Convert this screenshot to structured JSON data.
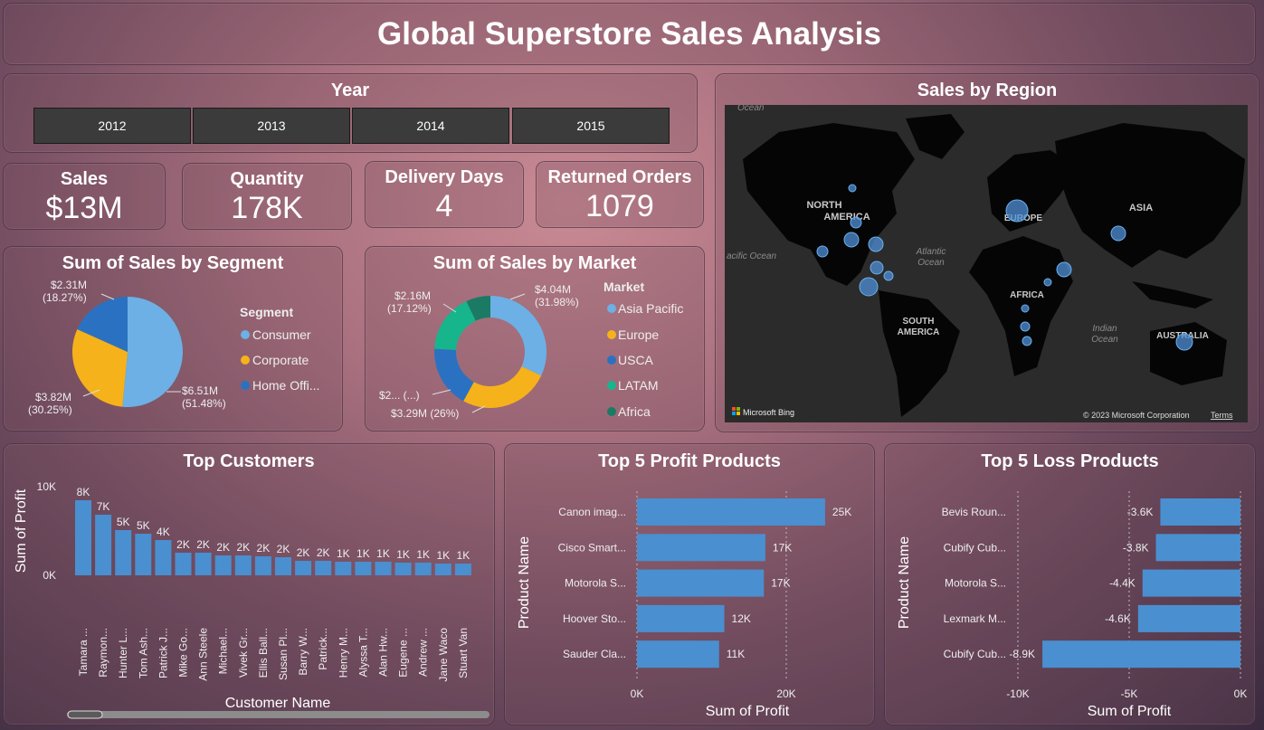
{
  "title": "Global Superstore Sales Analysis",
  "year_filter": {
    "label": "Year",
    "options": [
      "2012",
      "2013",
      "2014",
      "2015"
    ]
  },
  "kpis": [
    {
      "label": "Sales",
      "value": "$13M"
    },
    {
      "label": "Quantity",
      "value": "178K"
    },
    {
      "label": "Delivery Days",
      "value": "4"
    },
    {
      "label": "Returned Orders",
      "value": "1079"
    }
  ],
  "colors": {
    "blue_light": "#6cb0e6",
    "gold": "#f6b21a",
    "blue_dark": "#2a72c1",
    "teal": "#17b58c",
    "green_dark": "#1b7a64",
    "bar": "#4a8fd0"
  },
  "segment": {
    "title": "Sum of Sales by Segment",
    "legend_title": "Segment",
    "legend": [
      "Consumer",
      "Corporate",
      "Home Offi..."
    ],
    "labels": [
      {
        "value": "$6.51M",
        "pct": "(51.48%)"
      },
      {
        "value": "$3.82M",
        "pct": "(30.25%)"
      },
      {
        "value": "$2.31M",
        "pct": "(18.27%)"
      }
    ]
  },
  "market": {
    "title": "Sum of Sales by Market",
    "legend_title": "Market",
    "legend": [
      "Asia Pacific",
      "Europe",
      "USCA",
      "LATAM",
      "Africa"
    ],
    "labels": [
      {
        "value": "$4.04M",
        "pct": "(31.98%)"
      },
      {
        "text": "$3.29M (26%)"
      },
      {
        "text": "$2... (...)"
      },
      {
        "value": "$2.16M",
        "pct": "(17.12%)"
      }
    ]
  },
  "map": {
    "title": "Sales by Region",
    "labels": {
      "north_america": "NORTH\nAMERICA",
      "europe": "EUROPE",
      "asia": "ASIA",
      "africa": "AFRICA",
      "south_america": "SOUTH\nAMERICA",
      "australia": "AUSTRALIA",
      "atlantic": "Atlantic\nOcean",
      "indian": "Indian\nOcean",
      "pacific": "acific Ocean",
      "ocean_top": "Ocean"
    },
    "attribution": "Microsoft Bing",
    "copyright": "© 2023 Microsoft Corporation",
    "terms": "Terms"
  },
  "chart_data": [
    {
      "type": "pie",
      "title": "Sum of Sales by Segment",
      "categories": [
        "Consumer",
        "Corporate",
        "Home Office"
      ],
      "values": [
        6.51,
        3.82,
        2.31
      ],
      "percent": [
        51.48,
        30.25,
        18.27
      ],
      "unit": "$M"
    },
    {
      "type": "pie",
      "title": "Sum of Sales by Market",
      "donut": true,
      "categories": [
        "Asia Pacific",
        "Europe",
        "USCA",
        "LATAM",
        "Africa"
      ],
      "values": [
        4.04,
        3.29,
        2.26,
        2.16,
        0.89
      ],
      "percent": [
        31.98,
        26,
        17.9,
        17.12,
        7.0
      ],
      "unit": "$M"
    },
    {
      "type": "bar",
      "title": "Top Customers",
      "xlabel": "Customer Name",
      "ylabel": "Sum of Profit",
      "ylim": [
        0,
        10000
      ],
      "yticks": [
        "10K",
        "0K"
      ],
      "categories": [
        "Tamara ...",
        "Raymon...",
        "Hunter L...",
        "Tom Ash...",
        "Patrick J...",
        "Mike Go...",
        "Ann Steele",
        "Michael...",
        "Vivek Gr...",
        "Ellis Ball...",
        "Susan Pl...",
        "Barry W...",
        "Patrick...",
        "Henry M...",
        "Alyssa T...",
        "Alan Hw...",
        "Eugene ...",
        "Andrew ...",
        "Jane Waco",
        "Stuart Van"
      ],
      "values": [
        8300,
        6700,
        5000,
        4600,
        3900,
        2500,
        2500,
        2200,
        2200,
        2100,
        2000,
        1600,
        1600,
        1500,
        1500,
        1500,
        1400,
        1400,
        1300,
        1300
      ],
      "data_labels": [
        "8K",
        "7K",
        "5K",
        "5K",
        "4K",
        "2K",
        "2K",
        "2K",
        "2K",
        "2K",
        "2K",
        "2K",
        "2K",
        "1K",
        "1K",
        "1K",
        "1K",
        "1K",
        "1K",
        "1K"
      ]
    },
    {
      "type": "bar",
      "orientation": "horizontal",
      "title": "Top 5 Profit Products",
      "xlabel": "Sum of Profit",
      "ylabel": "Product Name",
      "xlim": [
        0,
        25000
      ],
      "xticks": [
        "0K",
        "20K"
      ],
      "categories": [
        "Canon imag...",
        "Cisco Smart...",
        "Motorola S...",
        "Hoover Sto...",
        "Sauder Cla..."
      ],
      "values": [
        25200,
        17200,
        17000,
        11700,
        11000
      ],
      "data_labels": [
        "25K",
        "17K",
        "17K",
        "12K",
        "11K"
      ]
    },
    {
      "type": "bar",
      "orientation": "horizontal",
      "title": "Top 5 Loss Products",
      "xlabel": "Sum of Profit",
      "ylabel": "Product Name",
      "xlim": [
        -10000,
        0
      ],
      "xticks": [
        "-10K",
        "-5K",
        "0K"
      ],
      "categories": [
        "Bevis Roun...",
        "Cubify Cub...",
        "Motorola S...",
        "Lexmark M...",
        "Cubify Cub..."
      ],
      "values": [
        -3600,
        -3800,
        -4400,
        -4600,
        -8900
      ],
      "data_labels": [
        "-3.6K",
        "-3.8K",
        "-4.4K",
        "-4.6K",
        "-8.9K"
      ]
    }
  ]
}
